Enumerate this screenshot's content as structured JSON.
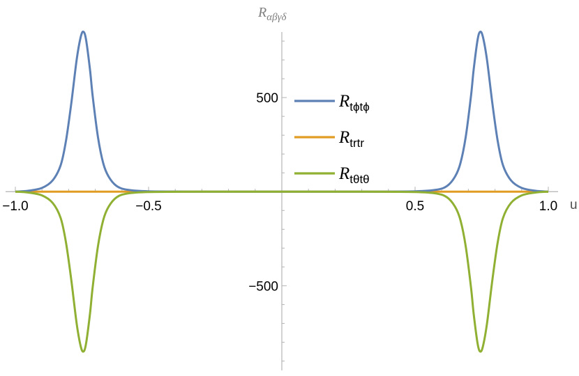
{
  "chart_data": {
    "type": "line",
    "title": "",
    "xlabel": "u",
    "ylabel": "R",
    "ylabel_sub": "αβγδ",
    "xlim": [
      -1.0,
      1.0
    ],
    "ylim": [
      -950,
      900
    ],
    "x_ticks": [
      {
        "value": -1.0,
        "label": "−1.0"
      },
      {
        "value": -0.5,
        "label": "−0.5"
      },
      {
        "value": 0.5,
        "label": "0.5"
      },
      {
        "value": 1.0,
        "label": "1.0"
      }
    ],
    "y_ticks": [
      {
        "value": 500,
        "label": "500"
      },
      {
        "value": -500,
        "label": "−500"
      }
    ],
    "grid": false,
    "legend_position": "right",
    "series": [
      {
        "name": "R",
        "subscript": "tϕtϕ",
        "color": "#5e81b5",
        "x": [
          -1.0,
          -0.95,
          -0.9,
          -0.86,
          -0.83,
          -0.81,
          -0.79,
          -0.77,
          -0.755,
          -0.745,
          -0.735,
          -0.72,
          -0.71,
          -0.69,
          -0.67,
          -0.65,
          -0.62,
          -0.58,
          -0.5,
          -0.3,
          0.0,
          0.3,
          0.5,
          0.58,
          0.62,
          0.65,
          0.67,
          0.69,
          0.71,
          0.72,
          0.735,
          0.745,
          0.755,
          0.77,
          0.79,
          0.81,
          0.83,
          0.86,
          0.9,
          0.95,
          1.0
        ],
        "y": [
          0,
          5,
          20,
          60,
          140,
          270,
          470,
          700,
          820,
          850,
          810,
          650,
          510,
          290,
          150,
          80,
          30,
          10,
          2,
          0,
          0,
          0,
          2,
          10,
          30,
          80,
          150,
          290,
          510,
          650,
          810,
          850,
          820,
          700,
          470,
          270,
          140,
          60,
          20,
          5,
          0
        ]
      },
      {
        "name": "R",
        "subscript": "trtr",
        "color": "#e19c24",
        "x": [
          -1.0,
          1.0
        ],
        "y": [
          0,
          0
        ]
      },
      {
        "name": "R",
        "subscript": "tθtθ",
        "color": "#8fb032",
        "x": [
          -1.0,
          -0.95,
          -0.9,
          -0.86,
          -0.83,
          -0.81,
          -0.79,
          -0.77,
          -0.755,
          -0.745,
          -0.735,
          -0.72,
          -0.71,
          -0.69,
          -0.67,
          -0.65,
          -0.62,
          -0.58,
          -0.5,
          -0.3,
          0.0,
          0.3,
          0.5,
          0.58,
          0.62,
          0.65,
          0.67,
          0.69,
          0.71,
          0.72,
          0.735,
          0.745,
          0.755,
          0.77,
          0.79,
          0.81,
          0.83,
          0.86,
          0.9,
          0.95,
          1.0
        ],
        "y": [
          0,
          -5,
          -20,
          -60,
          -140,
          -270,
          -470,
          -700,
          -820,
          -850,
          -810,
          -650,
          -510,
          -290,
          -150,
          -80,
          -30,
          -10,
          -2,
          0,
          0,
          0,
          -2,
          -10,
          -30,
          -80,
          -150,
          -290,
          -510,
          -650,
          -810,
          -850,
          -820,
          -700,
          -470,
          -270,
          -140,
          -60,
          -20,
          -5,
          0
        ]
      }
    ]
  }
}
